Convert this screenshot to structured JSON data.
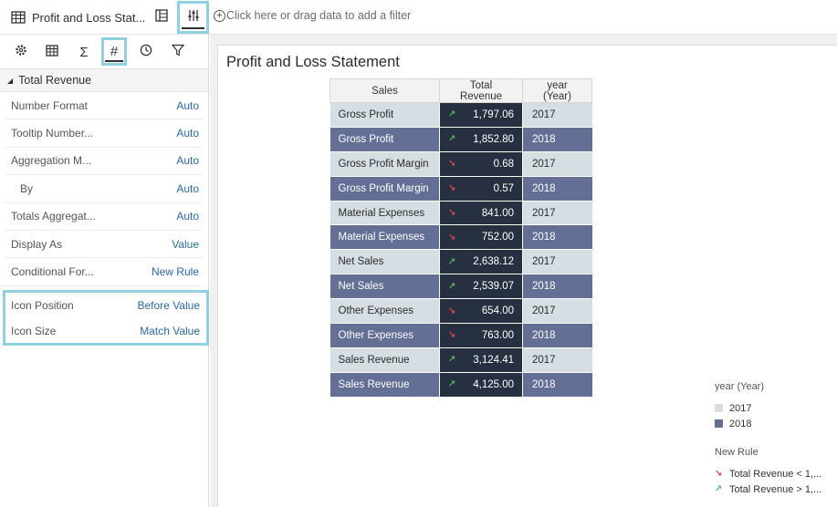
{
  "app": {
    "title": "Profit and Loss Stat...",
    "filter_placeholder": "Click here or drag data to add a filter"
  },
  "panel": {
    "tabs": [
      {
        "name": "general",
        "icon": "gear-icon"
      },
      {
        "name": "table",
        "icon": "table-icon"
      },
      {
        "name": "totals",
        "icon": "sigma-icon"
      },
      {
        "name": "numbers",
        "icon": "hash-icon"
      },
      {
        "name": "time",
        "icon": "clock-icon"
      },
      {
        "name": "filter",
        "icon": "funnel-icon"
      }
    ],
    "section": "Total Revenue",
    "rows": [
      {
        "label": "Number Format",
        "value": "Auto"
      },
      {
        "label": "Tooltip Number...",
        "value": "Auto"
      },
      {
        "label": "Aggregation M...",
        "value": "Auto"
      },
      {
        "label": "By",
        "value": "Auto"
      },
      {
        "label": "Totals Aggregat...",
        "value": "Auto"
      },
      {
        "label": "Display As",
        "value": "Value"
      },
      {
        "label": "Conditional For...",
        "value": "New Rule"
      }
    ],
    "highlight_rows": [
      {
        "label": "Icon Position",
        "value": "Before Value"
      },
      {
        "label": "Icon Size",
        "value": "Match Value"
      }
    ]
  },
  "viz": {
    "title": "Profit and Loss Statement",
    "columns": [
      "Sales",
      "Total Revenue",
      "year (Year)"
    ],
    "rows": [
      {
        "sales": "Gross Profit",
        "trend": "up",
        "revenue": "1,797.06",
        "year": "2017"
      },
      {
        "sales": "Gross Profit",
        "trend": "up",
        "revenue": "1,852.80",
        "year": "2018"
      },
      {
        "sales": "Gross Profit Margin",
        "trend": "down",
        "revenue": "0.68",
        "year": "2017"
      },
      {
        "sales": "Gross Profit Margin",
        "trend": "down",
        "revenue": "0.57",
        "year": "2018"
      },
      {
        "sales": "Material Expenses",
        "trend": "down",
        "revenue": "841.00",
        "year": "2017"
      },
      {
        "sales": "Material Expenses",
        "trend": "down",
        "revenue": "752.00",
        "year": "2018"
      },
      {
        "sales": "Net Sales",
        "trend": "up",
        "revenue": "2,638.12",
        "year": "2017"
      },
      {
        "sales": "Net Sales",
        "trend": "up",
        "revenue": "2,539.07",
        "year": "2018"
      },
      {
        "sales": "Other Expenses",
        "trend": "down",
        "revenue": "654.00",
        "year": "2017"
      },
      {
        "sales": "Other Expenses",
        "trend": "down",
        "revenue": "763.00",
        "year": "2018"
      },
      {
        "sales": "Sales Revenue",
        "trend": "up",
        "revenue": "3,124.41",
        "year": "2017"
      },
      {
        "sales": "Sales Revenue",
        "trend": "up",
        "revenue": "4,125.00",
        "year": "2018"
      }
    ],
    "legend": {
      "title": "year (Year)",
      "items": [
        {
          "label": "2017",
          "color": "#d5dfe3"
        },
        {
          "label": "2018",
          "color": "#636f95"
        }
      ],
      "rule_title": "New Rule",
      "rules": [
        {
          "label": "Total Revenue < 1,...",
          "trend": "down",
          "color": "#e04848"
        },
        {
          "label": "Total Revenue > 1,...",
          "trend": "up",
          "color": "#58b858"
        }
      ]
    }
  },
  "colors": {
    "accent_highlight": "#8fd0e2",
    "link_value": "#2a6aa8",
    "revenue_cell": "#263040",
    "row_2017": "#d5dfe3",
    "row_2018": "#636f95"
  }
}
